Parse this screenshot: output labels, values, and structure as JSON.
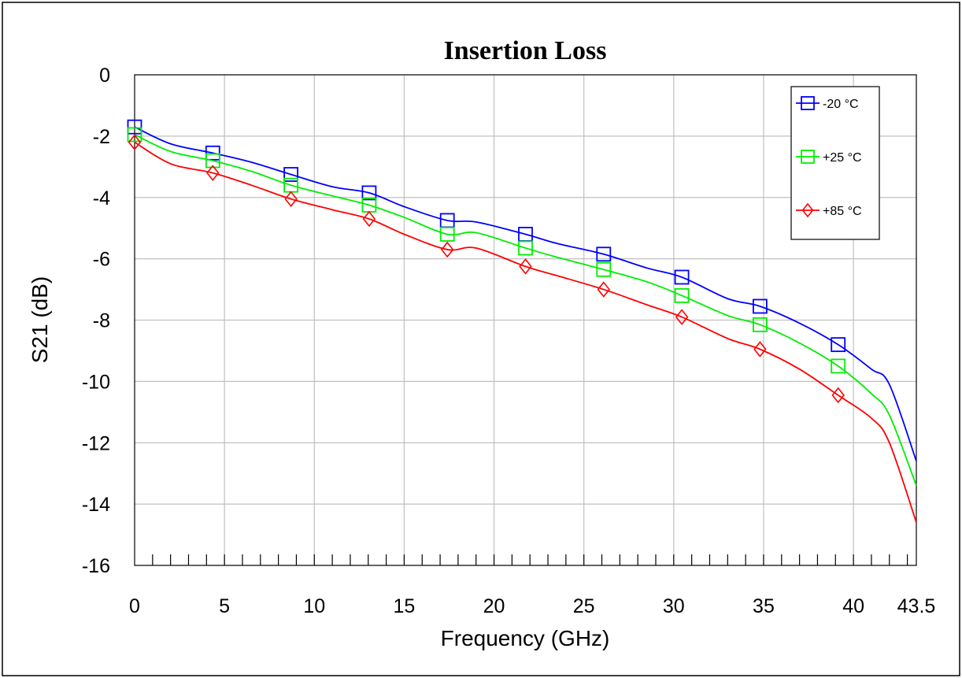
{
  "chart_data": {
    "type": "line",
    "title": "Insertion Loss",
    "xlabel": "Frequency (GHz)",
    "ylabel": "S21 (dB)",
    "xlim": [
      0,
      43.5
    ],
    "ylim": [
      -16,
      0
    ],
    "x_ticks": [
      0,
      5,
      10,
      15,
      20,
      25,
      30,
      35,
      40,
      43.5
    ],
    "x_tick_labels": [
      "0",
      "5",
      "10",
      "15",
      "20",
      "25",
      "30",
      "35",
      "40",
      "43.5"
    ],
    "y_ticks": [
      0,
      -2,
      -4,
      -6,
      -8,
      -10,
      -12,
      -14,
      -16
    ],
    "y_tick_labels": [
      "0",
      "-2",
      "-4",
      "-6",
      "-8",
      "-10",
      "-12",
      "-14",
      "-16"
    ],
    "grid": true,
    "legend_position": "top-right",
    "series": [
      {
        "name": "-20 °C",
        "color": "#0000ff",
        "marker": "square",
        "x": [
          0,
          2,
          4.35,
          6.5,
          8.7,
          11,
          13.05,
          15,
          17.4,
          19,
          21.75,
          23.5,
          26.1,
          28.5,
          30.45,
          33,
          34.8,
          37,
          39.15,
          41,
          42,
          43.5
        ],
        "y": [
          -1.7,
          -2.25,
          -2.55,
          -2.85,
          -3.25,
          -3.65,
          -3.85,
          -4.3,
          -4.75,
          -4.8,
          -5.2,
          -5.5,
          -5.85,
          -6.3,
          -6.6,
          -7.3,
          -7.55,
          -8.1,
          -8.8,
          -9.6,
          -10.1,
          -12.6
        ],
        "marker_x": [
          0,
          4.35,
          8.7,
          13.05,
          17.4,
          21.75,
          26.1,
          30.45,
          34.8,
          39.15
        ],
        "marker_y": [
          -1.7,
          -2.55,
          -3.25,
          -3.85,
          -4.75,
          -5.2,
          -5.85,
          -6.6,
          -7.55,
          -8.8
        ]
      },
      {
        "name": "+25 °C",
        "color": "#00ee00",
        "marker": "square",
        "x": [
          0,
          2,
          4.35,
          6.5,
          8.7,
          11,
          13.05,
          15,
          17.4,
          19,
          21.75,
          23.5,
          26.1,
          28.5,
          30.45,
          33,
          34.8,
          37,
          39.15,
          41,
          42,
          43.5
        ],
        "y": [
          -1.95,
          -2.5,
          -2.8,
          -3.15,
          -3.6,
          -3.95,
          -4.25,
          -4.65,
          -5.2,
          -5.15,
          -5.65,
          -5.95,
          -6.35,
          -6.75,
          -7.2,
          -7.85,
          -8.15,
          -8.75,
          -9.5,
          -10.4,
          -11.1,
          -13.4
        ],
        "marker_x": [
          0,
          4.35,
          8.7,
          13.05,
          17.4,
          21.75,
          26.1,
          30.45,
          34.8,
          39.15
        ],
        "marker_y": [
          -1.95,
          -2.8,
          -3.6,
          -4.25,
          -5.2,
          -5.65,
          -6.35,
          -7.2,
          -8.15,
          -9.5
        ]
      },
      {
        "name": "+85 °C",
        "color": "#ff0000",
        "marker": "diamond",
        "x": [
          0,
          2,
          4.35,
          6.5,
          8.7,
          11,
          13.05,
          15,
          17.4,
          19,
          21.75,
          23.5,
          26.1,
          28.5,
          30.45,
          33,
          34.8,
          37,
          39.15,
          41,
          42,
          43.5
        ],
        "y": [
          -2.2,
          -2.9,
          -3.2,
          -3.6,
          -4.05,
          -4.4,
          -4.7,
          -5.2,
          -5.7,
          -5.65,
          -6.25,
          -6.55,
          -7.0,
          -7.5,
          -7.9,
          -8.6,
          -8.95,
          -9.6,
          -10.45,
          -11.2,
          -12.0,
          -14.6
        ],
        "marker_x": [
          0,
          4.35,
          8.7,
          13.05,
          17.4,
          21.75,
          26.1,
          30.45,
          34.8,
          39.15
        ],
        "marker_y": [
          -2.2,
          -3.2,
          -4.05,
          -4.7,
          -5.7,
          -6.25,
          -7.0,
          -7.9,
          -8.95,
          -10.45
        ]
      }
    ]
  }
}
